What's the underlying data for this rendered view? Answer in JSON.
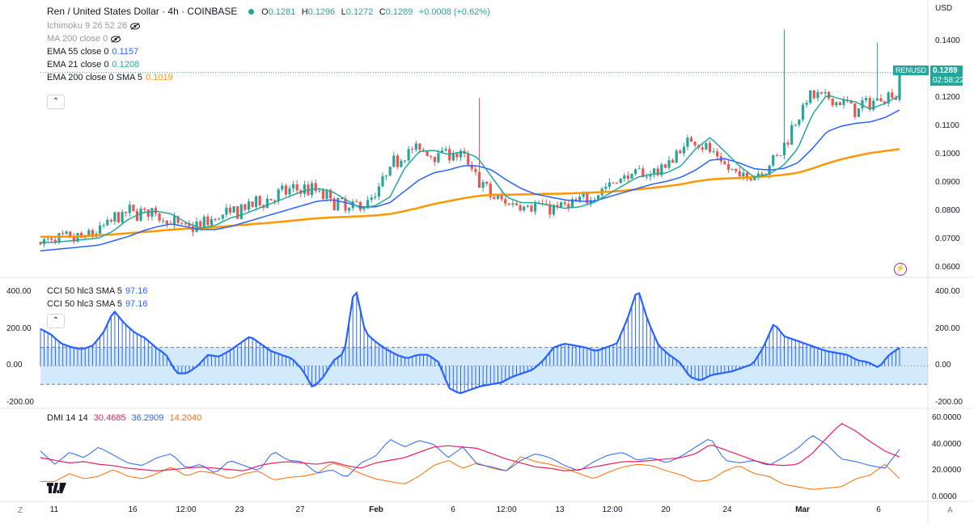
{
  "header": {
    "title": "Ren / United States Dollar · 4h · COINBASE",
    "ohlc": {
      "o_label": "O",
      "o": "0.1281",
      "h_label": "H",
      "h": "0.1296",
      "l_label": "L",
      "l": "0.1272",
      "c_label": "C",
      "c": "0.1289",
      "change": "+0.0008 (+0.62%)"
    }
  },
  "indicators": {
    "ichimoku": "Ichimoku 9 26 52 26",
    "ma200": "MA 200 close 0",
    "ema55": {
      "label": "EMA 55 close 0",
      "value": "0.1157"
    },
    "ema21": {
      "label": "EMA 21 close 0",
      "value": "0.1208"
    },
    "ema200": {
      "label": "EMA 200 close 0 SMA 5",
      "value": "0.1019"
    }
  },
  "cci_pane": {
    "label1": "CCI 50 hlc3 SMA 5",
    "value1": "97.16",
    "label2": "CCI 50 hlc3 SMA 5",
    "value2": "97.16"
  },
  "dmi_pane": {
    "label": "DMI 14 14",
    "adx": "30.4685",
    "plus_di": "36.2909",
    "minus_di": "14.2040"
  },
  "price_axis": {
    "currency": "USD",
    "ticks": [
      "0.1400",
      "0.1300",
      "0.1200",
      "0.1100",
      "0.1000",
      "0.0900",
      "0.0800",
      "0.0700",
      "0.0600"
    ],
    "symbol_tag": "RENUSD",
    "last_price": "0.1289",
    "countdown": "02:58:22"
  },
  "cci_axis": {
    "ticks": [
      "400.00",
      "200.00",
      "0.00",
      "-200.00"
    ]
  },
  "dmi_axis": {
    "ticks": [
      "60.0000",
      "40.0000",
      "20.0000",
      "0.0000"
    ]
  },
  "time_axis": {
    "ticks": [
      "11",
      "16",
      "12:00",
      "23",
      "27",
      "Feb",
      "6",
      "12:00",
      "13",
      "12:00",
      "20",
      "24",
      "Mar",
      "6"
    ]
  },
  "bottom": {
    "left_btn": "Z",
    "right_btn": "A"
  },
  "colors": {
    "up": "#26a69a",
    "down": "#ef5350",
    "ema21": "#26a69a",
    "ema55": "#2962ff",
    "ema200": "#ff9800",
    "cci": "#2962ff",
    "adx": "#e91e63",
    "plus_di": "#2962ff",
    "minus_di": "#ff6d00"
  },
  "chart_data": {
    "type": "line",
    "title": "Ren / United States Dollar · 4h · COINBASE",
    "last_close": 0.1289,
    "ylim": [
      0.0575,
      0.1445
    ],
    "x_ticks": [
      "11",
      "16",
      "12:00",
      "23",
      "27",
      "Feb",
      "6",
      "12:00",
      "13",
      "12:00",
      "20",
      "24",
      "Mar",
      "6"
    ],
    "series": [
      {
        "name": "EMA 21 close 0",
        "values": [
          0.069,
          0.069,
          0.0695,
          0.07,
          0.0705,
          0.073,
          0.077,
          0.0795,
          0.08,
          0.079,
          0.076,
          0.074,
          0.075,
          0.0775,
          0.079,
          0.081,
          0.083,
          0.085,
          0.087,
          0.088,
          0.087,
          0.084,
          0.081,
          0.082,
          0.085,
          0.095,
          0.101,
          0.1015,
          0.1,
          0.101,
          0.099,
          0.092,
          0.085,
          0.083,
          0.083,
          0.082,
          0.081,
          0.0815,
          0.083,
          0.086,
          0.089,
          0.092,
          0.093,
          0.0935,
          0.096,
          0.102,
          0.106,
          0.101,
          0.096,
          0.092,
          0.093,
          0.096,
          0.102,
          0.114,
          0.121,
          0.1195,
          0.1185,
          0.116,
          0.118,
          0.1208
        ]
      },
      {
        "name": "EMA 55 close 0",
        "values": [
          0.066,
          0.0665,
          0.067,
          0.0675,
          0.068,
          0.0695,
          0.071,
          0.073,
          0.0745,
          0.0755,
          0.0745,
          0.0735,
          0.0735,
          0.0745,
          0.076,
          0.0775,
          0.079,
          0.0805,
          0.082,
          0.0835,
          0.084,
          0.083,
          0.0815,
          0.0815,
          0.083,
          0.087,
          0.091,
          0.0935,
          0.0945,
          0.096,
          0.096,
          0.0945,
          0.091,
          0.088,
          0.086,
          0.085,
          0.084,
          0.0835,
          0.0835,
          0.085,
          0.0865,
          0.088,
          0.0895,
          0.0905,
          0.092,
          0.0945,
          0.098,
          0.0985,
          0.097,
          0.095,
          0.0945,
          0.095,
          0.097,
          0.102,
          0.108,
          0.11,
          0.111,
          0.1115,
          0.113,
          0.1157
        ]
      },
      {
        "name": "EMA 200 close 0 SMA 5",
        "values": [
          0.071,
          0.071,
          0.071,
          0.0712,
          0.0715,
          0.0718,
          0.0722,
          0.0726,
          0.073,
          0.0735,
          0.0738,
          0.074,
          0.0743,
          0.0748,
          0.0752,
          0.0756,
          0.076,
          0.0765,
          0.077,
          0.0775,
          0.0778,
          0.078,
          0.0782,
          0.0785,
          0.079,
          0.08,
          0.0812,
          0.0825,
          0.0835,
          0.0845,
          0.0853,
          0.0858,
          0.0858,
          0.0859,
          0.086,
          0.0861,
          0.0862,
          0.0864,
          0.0866,
          0.0868,
          0.0872,
          0.0877,
          0.0882,
          0.0888,
          0.0895,
          0.0905,
          0.0912,
          0.0915,
          0.0917,
          0.092,
          0.0923,
          0.0928,
          0.0935,
          0.095,
          0.0968,
          0.0983,
          0.0995,
          0.1005,
          0.1012,
          0.1019
        ]
      },
      {
        "name": "CCI 50 hlc3 SMA 5",
        "values": [
          200,
          170,
          120,
          100,
          90,
          110,
          180,
          300,
          230,
          180,
          150,
          100,
          60,
          -40,
          -40,
          0,
          60,
          50,
          80,
          120,
          160,
          120,
          80,
          60,
          40,
          -20,
          -120,
          -60,
          30,
          70,
          440,
          180,
          130,
          90,
          60,
          40,
          60,
          60,
          20,
          -120,
          -150,
          -130,
          -110,
          -100,
          -90,
          -60,
          -40,
          -20,
          30,
          100,
          120,
          110,
          100,
          80,
          100,
          120,
          250,
          420,
          240,
          110,
          60,
          20,
          -60,
          -80,
          -50,
          -40,
          -30,
          -10,
          10,
          100,
          230,
          160,
          140,
          120,
          100,
          80,
          70,
          60,
          30,
          20,
          -10,
          60,
          97.16
        ]
      },
      {
        "name": "DMI 14 14 ADX",
        "values": [
          30,
          28,
          26,
          27,
          25,
          24,
          22,
          21,
          20,
          21,
          22,
          23,
          22,
          21,
          20,
          24,
          26,
          27,
          26,
          25,
          27,
          24,
          22,
          26,
          28,
          30,
          34,
          38,
          39,
          38,
          37,
          33,
          29,
          26,
          23,
          22,
          20,
          21,
          23,
          25,
          27,
          27,
          28,
          29,
          30,
          33,
          40,
          36,
          32,
          28,
          25,
          24,
          25,
          33,
          45,
          56,
          50,
          42,
          35,
          30.4685
        ]
      },
      {
        "name": "DMI 14 14 +DI",
        "values": [
          35,
          25,
          34,
          30,
          38,
          32,
          26,
          24,
          30,
          33,
          22,
          25,
          18,
          28,
          24,
          20,
          35,
          28,
          27,
          18,
          21,
          15,
          26,
          31,
          44,
          38,
          43,
          40,
          30,
          38,
          25,
          23,
          20,
          28,
          33,
          30,
          24,
          20,
          27,
          32,
          34,
          28,
          30,
          26,
          31,
          38,
          45,
          28,
          26,
          28,
          24,
          30,
          37,
          47,
          40,
          29,
          27,
          24,
          22,
          36.2909
        ]
      },
      {
        "name": "DMI 14 14 -DI",
        "values": [
          12,
          12,
          18,
          14,
          16,
          21,
          16,
          14,
          18,
          23,
          16,
          20,
          18,
          14,
          18,
          20,
          13,
          15,
          16,
          18,
          26,
          23,
          18,
          14,
          12,
          10,
          16,
          24,
          28,
          22,
          26,
          22,
          20,
          31,
          27,
          25,
          22,
          18,
          14,
          19,
          23,
          25,
          24,
          20,
          17,
          12,
          13,
          20,
          24,
          18,
          16,
          10,
          8,
          6,
          7,
          8,
          14,
          17,
          25,
          14.204
        ]
      }
    ]
  }
}
